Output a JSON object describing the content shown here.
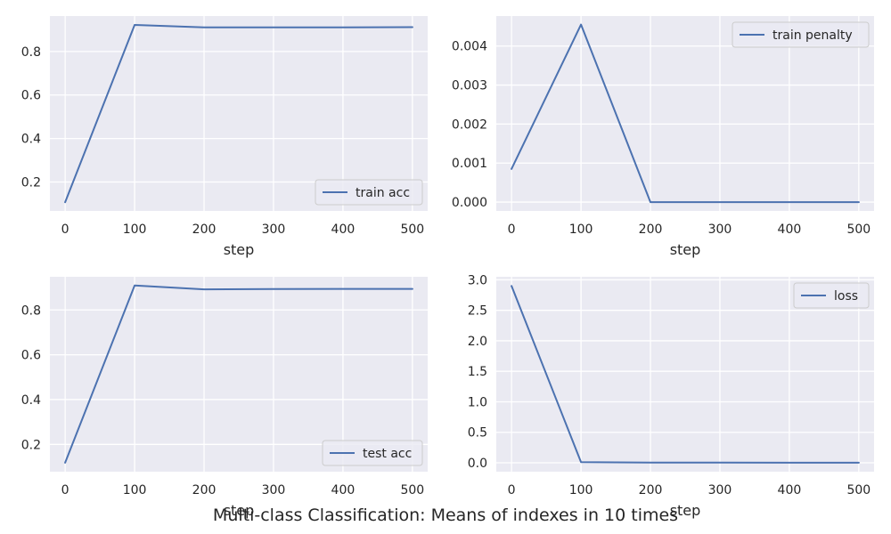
{
  "figure": {
    "title": "Multi-class Classification: Means of indexes in 10 times",
    "line_color": "#4c72b0",
    "panel_bg": "#eaeaf2",
    "grid_color": "#ffffff"
  },
  "chart_data": [
    {
      "type": "line",
      "xlabel": "step",
      "ylabel": "",
      "x": [
        0,
        100,
        200,
        300,
        400,
        500
      ],
      "xticks": [
        0,
        100,
        200,
        300,
        400,
        500
      ],
      "xlim": [
        -22,
        522
      ],
      "yticks": [
        0.2,
        0.4,
        0.6,
        0.8
      ],
      "yticklabels": [
        "0.2",
        "0.4",
        "0.6",
        "0.8"
      ],
      "ylim": [
        0.067,
        0.963
      ],
      "grid": true,
      "legend_position": "lower-right",
      "series": [
        {
          "name": "train acc",
          "values": [
            0.107,
            0.922,
            0.911,
            0.911,
            0.911,
            0.912
          ]
        }
      ]
    },
    {
      "type": "line",
      "xlabel": "step",
      "ylabel": "",
      "x": [
        0,
        100,
        200,
        300,
        400,
        500
      ],
      "xticks": [
        0,
        100,
        200,
        300,
        400,
        500
      ],
      "xlim": [
        -22,
        522
      ],
      "yticks": [
        0.0,
        0.001,
        0.002,
        0.003,
        0.004
      ],
      "yticklabels": [
        "0.000",
        "0.001",
        "0.002",
        "0.003",
        "0.004"
      ],
      "ylim": [
        -0.000227,
        0.00477
      ],
      "grid": true,
      "legend_position": "upper-right",
      "series": [
        {
          "name": "train penalty",
          "values": [
            0.00085,
            0.00455,
            0.0,
            0.0,
            0.0,
            0.0
          ]
        }
      ]
    },
    {
      "type": "line",
      "xlabel": "step",
      "ylabel": "",
      "x": [
        0,
        100,
        200,
        300,
        400,
        500
      ],
      "xticks": [
        0,
        100,
        200,
        300,
        400,
        500
      ],
      "xlim": [
        -22,
        522
      ],
      "yticks": [
        0.2,
        0.4,
        0.6,
        0.8
      ],
      "yticklabels": [
        "0.2",
        "0.4",
        "0.6",
        "0.8"
      ],
      "ylim": [
        0.078,
        0.948
      ],
      "grid": true,
      "legend_position": "lower-right",
      "series": [
        {
          "name": "test acc",
          "values": [
            0.118,
            0.909,
            0.892,
            0.893,
            0.894,
            0.894
          ]
        }
      ]
    },
    {
      "type": "line",
      "xlabel": "step",
      "ylabel": "",
      "x": [
        0,
        100,
        200,
        300,
        400,
        500
      ],
      "xticks": [
        0,
        100,
        200,
        300,
        400,
        500
      ],
      "xlim": [
        -22,
        522
      ],
      "yticks": [
        0.0,
        0.5,
        1.0,
        1.5,
        2.0,
        2.5,
        3.0
      ],
      "yticklabels": [
        "0.0",
        "0.5",
        "1.0",
        "1.5",
        "2.0",
        "2.5",
        "3.0"
      ],
      "ylim": [
        -0.146,
        3.05
      ],
      "grid": true,
      "legend_position": "upper-right",
      "series": [
        {
          "name": "loss",
          "values": [
            2.9,
            0.01,
            0.004,
            0.003,
            0.002,
            0.002
          ]
        }
      ]
    }
  ]
}
